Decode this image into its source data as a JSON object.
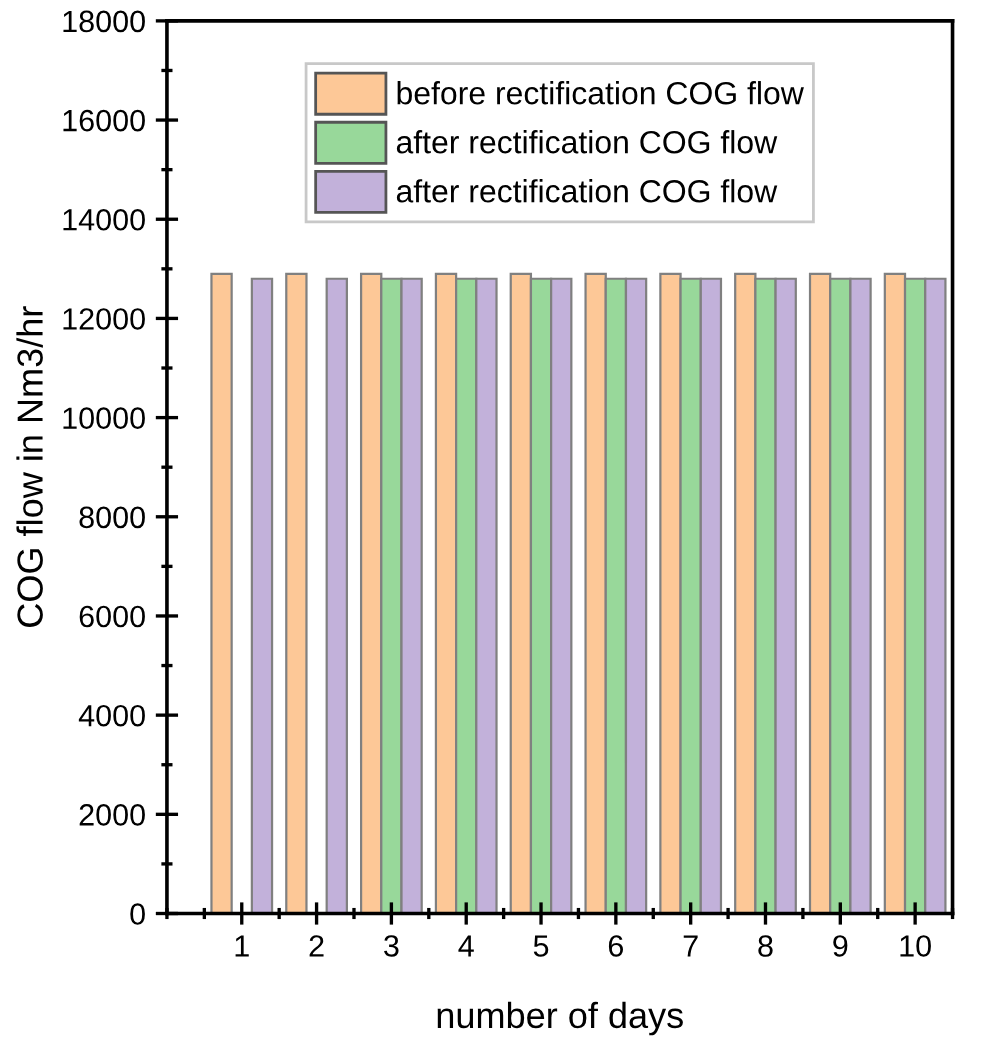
{
  "chart_data": {
    "type": "bar",
    "xlabel": "number of days",
    "ylabel": "COG flow in Nm3/hr",
    "x": [
      1,
      2,
      3,
      4,
      5,
      6,
      7,
      8,
      9,
      10
    ],
    "series": [
      {
        "name": "before rectification COG flow",
        "color": "#fdc897",
        "values": [
          12900,
          12900,
          12900,
          12900,
          12900,
          12900,
          12900,
          12900,
          12900,
          12900
        ]
      },
      {
        "name": "after rectification COG flow",
        "color": "#98d89a",
        "values": [
          null,
          null,
          12800,
          12800,
          12800,
          12800,
          12800,
          12800,
          12800,
          12800
        ]
      },
      {
        "name": "after rectification COG flow",
        "color": "#c2b1da",
        "values": [
          12800,
          12800,
          12800,
          12800,
          12800,
          12800,
          12800,
          12800,
          12800,
          12800
        ]
      }
    ],
    "xlim": [
      0,
      10.5
    ],
    "xticks": [
      1,
      2,
      3,
      4,
      5,
      6,
      7,
      8,
      9,
      10
    ],
    "ylim": [
      0,
      18000
    ],
    "yticks": [
      0,
      2000,
      4000,
      6000,
      8000,
      10000,
      12000,
      14000,
      16000,
      18000
    ],
    "grid": false,
    "legend": "top"
  }
}
